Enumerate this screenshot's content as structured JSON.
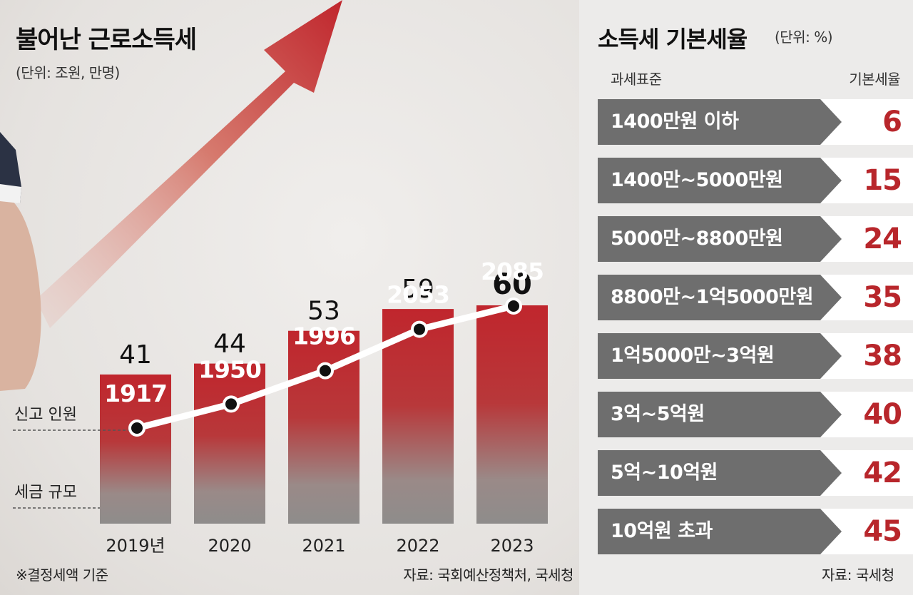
{
  "left": {
    "title": "불어난 근로소득세",
    "unit": "(단위: 조원, 만명)",
    "legend_people": "신고 인원",
    "legend_tax": "세금 규모",
    "footnote": "※결정세액 기준",
    "source": "자료: 국회예산정책처, 국세청"
  },
  "chart_data": {
    "type": "bar",
    "categories": [
      "2019년",
      "2020",
      "2021",
      "2022",
      "2023"
    ],
    "series": [
      {
        "name": "세금 규모",
        "values": [
          41,
          44,
          53,
          59,
          60
        ]
      },
      {
        "name": "신고 인원",
        "values": [
          1917,
          1950,
          1996,
          2053,
          2085
        ]
      }
    ],
    "bar_color": "#c0262d",
    "line_color": "#ffffff"
  },
  "right": {
    "title": "소득세 기본세율",
    "unit": "(단위: %)",
    "col_left": "과세표준",
    "col_right": "기본세율",
    "rows": [
      {
        "bracket": "1400만원 이하",
        "rate": "6"
      },
      {
        "bracket": "1400만~5000만원",
        "rate": "15"
      },
      {
        "bracket": "5000만~8800만원",
        "rate": "24"
      },
      {
        "bracket": "8800만~1억5000만원",
        "rate": "35"
      },
      {
        "bracket": "1억5000만~3억원",
        "rate": "38"
      },
      {
        "bracket": "3억~5억원",
        "rate": "40"
      },
      {
        "bracket": "5억~10억원",
        "rate": "42"
      },
      {
        "bracket": "10억원 초과",
        "rate": "45"
      }
    ],
    "source": "자료: 국세청"
  }
}
